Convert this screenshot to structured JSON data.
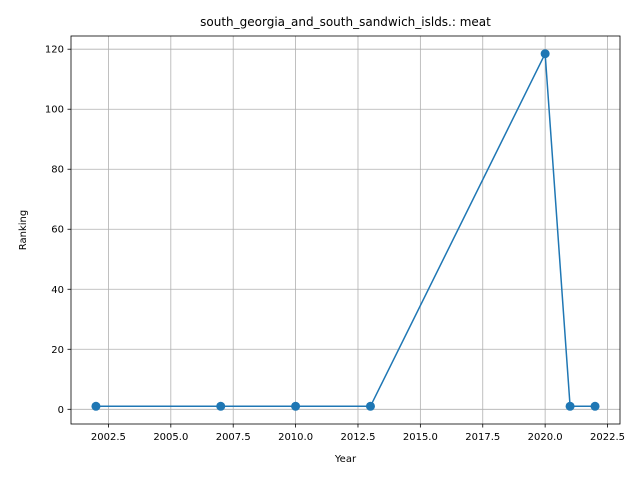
{
  "chart_data": {
    "type": "line",
    "title": "south_georgia_and_south_sandwich_islds.: meat",
    "xlabel": "Year",
    "ylabel": "Ranking",
    "xlim": [
      2001.0,
      2023.0
    ],
    "ylim": [
      -4.9,
      124.4
    ],
    "xticks": [
      2002.5,
      2005.0,
      2007.5,
      2010.0,
      2012.5,
      2015.0,
      2017.5,
      2020.0,
      2022.5
    ],
    "xtick_labels": [
      "2002.5",
      "2005.0",
      "2007.5",
      "2010.0",
      "2012.5",
      "2015.0",
      "2017.5",
      "2020.0",
      "2022.5"
    ],
    "yticks": [
      0,
      20,
      40,
      60,
      80,
      100,
      120
    ],
    "ytick_labels": [
      "0",
      "20",
      "40",
      "60",
      "80",
      "100",
      "120"
    ],
    "grid": true,
    "series": [
      {
        "x": [
          2002,
          2007,
          2010,
          2013,
          2020,
          2021,
          2022
        ],
        "y": [
          1,
          1,
          1,
          1,
          118.5,
          1,
          1
        ],
        "color": "#1f77b4",
        "marker": "circle"
      }
    ]
  }
}
